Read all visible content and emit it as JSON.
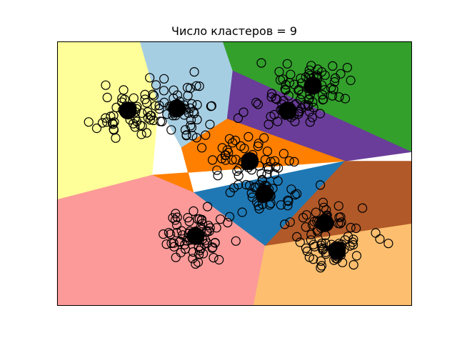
{
  "chart_data": {
    "type": "scatter",
    "title": "Число кластеров = 9",
    "xlabel": "",
    "ylabel": "",
    "xlim": [
      0,
      100
    ],
    "ylim": [
      0,
      100
    ],
    "grid": false,
    "ticks": false,
    "regions": [
      {
        "id": "yellow",
        "color": "#FFFF99",
        "polygon": [
          [
            0,
            100
          ],
          [
            23.4,
            100
          ],
          [
            28.6,
            75.7
          ],
          [
            26.8,
            49.3
          ],
          [
            0,
            40.0
          ]
        ]
      },
      {
        "id": "lightblue",
        "color": "#A6CEE3",
        "polygon": [
          [
            23.4,
            100
          ],
          [
            46.8,
            100
          ],
          [
            49.6,
            88.9
          ],
          [
            48.0,
            70.6
          ],
          [
            35.1,
            59.7
          ],
          [
            28.6,
            75.7
          ]
        ]
      },
      {
        "id": "green",
        "color": "#33A02C",
        "polygon": [
          [
            46.8,
            100
          ],
          [
            100,
            100
          ],
          [
            100,
            58.1
          ],
          [
            49.6,
            88.9
          ]
        ]
      },
      {
        "id": "purple",
        "color": "#6A3D9A",
        "polygon": [
          [
            49.6,
            88.9
          ],
          [
            100,
            58.1
          ],
          [
            81.3,
            54.6
          ],
          [
            48.0,
            70.6
          ]
        ]
      },
      {
        "id": "orange",
        "color": "#FF7F00",
        "polygon": [
          [
            35.1,
            59.7
          ],
          [
            48.0,
            70.6
          ],
          [
            81.3,
            54.6
          ],
          [
            26.8,
            49.3
          ],
          [
            38.5,
            42.7
          ]
        ]
      },
      {
        "id": "blue",
        "color": "#1F78B4",
        "polygon": [
          [
            38.5,
            42.7
          ],
          [
            81.3,
            54.6
          ],
          [
            58.7,
            22.4
          ],
          [
            52.0,
            26.2
          ]
        ]
      },
      {
        "id": "pink",
        "color": "#FB9A99",
        "polygon": [
          [
            0,
            40.0
          ],
          [
            26.8,
            49.3
          ],
          [
            38.5,
            42.7
          ],
          [
            58.7,
            22.4
          ],
          [
            55.5,
            0
          ],
          [
            0,
            0
          ]
        ]
      },
      {
        "id": "brown",
        "color": "#B15928",
        "polygon": [
          [
            81.3,
            54.6
          ],
          [
            100,
            54.6
          ],
          [
            100,
            30.8
          ],
          [
            58.7,
            22.4
          ]
        ]
      },
      {
        "id": "lightorange",
        "color": "#FDBF6F",
        "polygon": [
          [
            58.7,
            22.4
          ],
          [
            100,
            30.8
          ],
          [
            100,
            0
          ],
          [
            55.5,
            0
          ]
        ]
      }
    ],
    "centers": [
      {
        "x": 20.0,
        "y": 73.8
      },
      {
        "x": 33.8,
        "y": 74.6
      },
      {
        "x": 72.2,
        "y": 83.2
      },
      {
        "x": 65.1,
        "y": 73.8
      },
      {
        "x": 54.4,
        "y": 54.6
      },
      {
        "x": 58.5,
        "y": 42.2
      },
      {
        "x": 39.1,
        "y": 26.2
      },
      {
        "x": 75.6,
        "y": 31.1
      },
      {
        "x": 79.0,
        "y": 20.8
      }
    ],
    "clusters": [
      {
        "center": [
          20.0,
          73.8
        ],
        "spread": [
          8,
          11
        ],
        "count": 45,
        "seed": 11
      },
      {
        "center": [
          33.8,
          74.6
        ],
        "spread": [
          8,
          10
        ],
        "count": 60,
        "seed": 22
      },
      {
        "center": [
          72.2,
          83.2
        ],
        "spread": [
          9,
          8
        ],
        "count": 50,
        "seed": 33
      },
      {
        "center": [
          65.1,
          73.8
        ],
        "spread": [
          10,
          8
        ],
        "count": 40,
        "seed": 44
      },
      {
        "center": [
          54.4,
          54.6
        ],
        "spread": [
          11,
          7
        ],
        "count": 45,
        "seed": 55
      },
      {
        "center": [
          58.5,
          42.2
        ],
        "spread": [
          10,
          6
        ],
        "count": 40,
        "seed": 66
      },
      {
        "center": [
          39.1,
          26.2
        ],
        "spread": [
          10,
          10
        ],
        "count": 70,
        "seed": 77
      },
      {
        "center": [
          75.6,
          31.1
        ],
        "spread": [
          9,
          7
        ],
        "count": 40,
        "seed": 88
      },
      {
        "center": [
          79.0,
          20.8
        ],
        "spread": [
          9,
          7
        ],
        "count": 40,
        "seed": 99
      }
    ]
  }
}
